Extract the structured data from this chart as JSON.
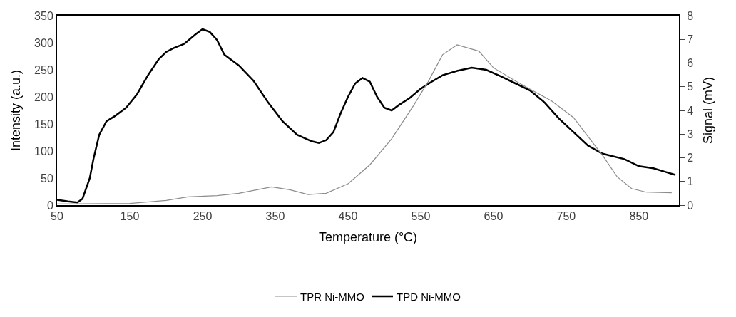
{
  "chart_data": {
    "type": "line",
    "xlabel": "Temperature (°C)",
    "ylabel": "Intensity (a.u.)",
    "y2label": "Signal (mV)",
    "xlim": [
      50,
      905
    ],
    "xticks": [
      50,
      150,
      250,
      350,
      450,
      550,
      650,
      750,
      850
    ],
    "ylim": [
      0,
      350
    ],
    "yticks": [
      0,
      50,
      100,
      150,
      200,
      250,
      300,
      350
    ],
    "y2lim": [
      0,
      8
    ],
    "y2ticks": [
      0,
      1,
      2,
      3,
      4,
      5,
      6,
      7,
      8
    ],
    "legend": "bottom",
    "marker": "none",
    "line_style": "solid",
    "series": [
      {
        "name": "TPR Ni-MMO",
        "color": "#8c8c8c",
        "axis": "y2",
        "x": [
          50,
          150,
          200,
          230,
          270,
          300,
          345,
          370,
          395,
          420,
          450,
          480,
          510,
          540,
          560,
          580,
          600,
          630,
          650,
          680,
          700,
          730,
          760,
          780,
          790,
          800,
          820,
          840,
          860,
          895
        ],
        "values": [
          0.05,
          0.07,
          0.2,
          0.35,
          0.4,
          0.5,
          0.77,
          0.65,
          0.45,
          0.5,
          0.9,
          1.7,
          2.8,
          4.2,
          5.2,
          6.35,
          6.77,
          6.5,
          5.8,
          5.25,
          4.9,
          4.4,
          3.7,
          2.9,
          2.5,
          2.1,
          1.2,
          0.7,
          0.55,
          0.52
        ]
      },
      {
        "name": "TPD Ni-MMO",
        "color": "#000000",
        "axis": "y",
        "x": [
          50,
          65,
          78,
          85,
          95,
          100,
          108,
          118,
          130,
          145,
          160,
          175,
          190,
          200,
          210,
          225,
          240,
          250,
          260,
          270,
          280,
          300,
          320,
          340,
          360,
          380,
          400,
          410,
          420,
          430,
          440,
          450,
          460,
          470,
          480,
          490,
          500,
          510,
          520,
          535,
          550,
          565,
          580,
          600,
          620,
          640,
          660,
          680,
          700,
          720,
          740,
          760,
          780,
          800,
          830,
          850,
          870,
          885,
          900
        ],
        "values": [
          10,
          7,
          5,
          12,
          50,
          85,
          130,
          155,
          165,
          180,
          205,
          240,
          270,
          283,
          290,
          298,
          315,
          325,
          320,
          305,
          278,
          258,
          230,
          190,
          155,
          130,
          118,
          115,
          120,
          135,
          170,
          200,
          225,
          235,
          228,
          200,
          180,
          175,
          185,
          198,
          215,
          228,
          240,
          248,
          254,
          250,
          238,
          225,
          212,
          190,
          160,
          135,
          110,
          95,
          85,
          72,
          68,
          62,
          56
        ]
      }
    ]
  }
}
